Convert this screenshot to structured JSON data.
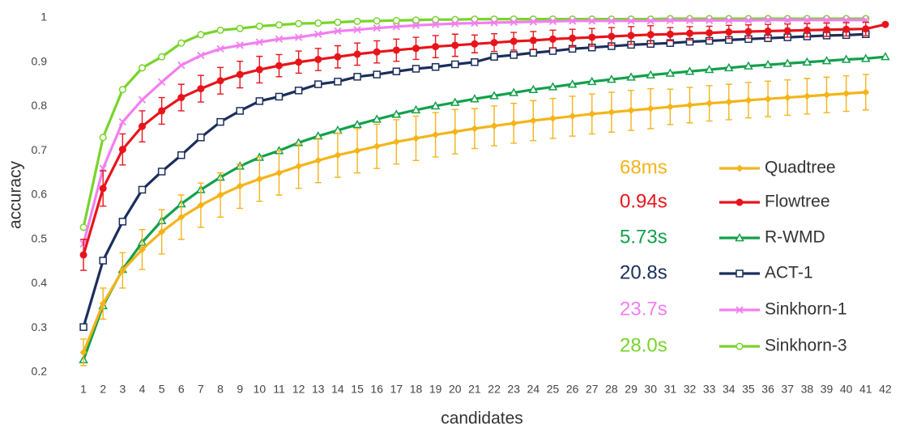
{
  "chart_data": {
    "type": "line",
    "xlabel": "candidates",
    "ylabel": "accuracy",
    "x": [
      1,
      2,
      3,
      4,
      5,
      6,
      7,
      8,
      9,
      10,
      11,
      12,
      13,
      14,
      15,
      16,
      17,
      18,
      19,
      20,
      21,
      22,
      23,
      24,
      25,
      26,
      27,
      28,
      29,
      30,
      31,
      32,
      33,
      34,
      35,
      36,
      37,
      38,
      39,
      40,
      41,
      42
    ],
    "xlim": [
      0.5,
      42.5
    ],
    "xticks": [
      1,
      2,
      3,
      4,
      5,
      6,
      7,
      8,
      9,
      10,
      11,
      12,
      13,
      14,
      15,
      16,
      17,
      18,
      19,
      20,
      21,
      22,
      23,
      24,
      25,
      26,
      27,
      28,
      29,
      30,
      31,
      32,
      33,
      34,
      35,
      36,
      37,
      38,
      39,
      40,
      41,
      42
    ],
    "ylim": [
      0.2,
      1
    ],
    "yticks": [
      0.2,
      0.3,
      0.4,
      0.5,
      0.6,
      0.7,
      0.8,
      0.9,
      1
    ],
    "grid": false,
    "legend": "right",
    "series": [
      {
        "name": "Quadtree",
        "time": "68ms",
        "color": "#f4b41a",
        "marker": "diamond",
        "values": [
          0.245,
          0.355,
          0.43,
          0.477,
          0.517,
          0.55,
          0.577,
          0.6,
          0.62,
          0.636,
          0.65,
          0.665,
          0.678,
          0.69,
          0.7,
          0.71,
          0.72,
          0.728,
          0.736,
          0.743,
          0.75,
          0.756,
          0.762,
          0.768,
          0.773,
          0.778,
          0.783,
          0.787,
          0.791,
          0.795,
          0.799,
          0.803,
          0.807,
          0.81,
          0.814,
          0.817,
          0.82,
          0.823,
          0.826,
          0.829,
          0.832,
          null
        ],
        "errors": [
          0.03,
          0.035,
          0.04,
          0.045,
          0.05,
          0.05,
          0.05,
          0.05,
          0.05,
          0.05,
          0.05,
          0.05,
          0.05,
          0.05,
          0.05,
          0.05,
          0.05,
          0.05,
          0.05,
          0.05,
          0.045,
          0.045,
          0.045,
          0.045,
          0.045,
          0.045,
          0.045,
          0.045,
          0.045,
          0.045,
          0.04,
          0.04,
          0.04,
          0.04,
          0.04,
          0.04,
          0.04,
          0.04,
          0.04,
          0.04,
          0.04,
          null
        ]
      },
      {
        "name": "Flowtree",
        "time": "0.94s",
        "color": "#e8141b",
        "marker": "circle",
        "values": [
          0.465,
          0.615,
          0.703,
          0.755,
          0.79,
          0.82,
          0.84,
          0.858,
          0.872,
          0.883,
          0.892,
          0.9,
          0.906,
          0.912,
          0.918,
          0.923,
          0.927,
          0.931,
          0.935,
          0.938,
          0.941,
          0.944,
          0.947,
          0.949,
          0.952,
          0.954,
          0.956,
          0.958,
          0.96,
          0.962,
          0.963,
          0.965,
          0.966,
          0.968,
          0.969,
          0.97,
          0.971,
          0.972,
          0.973,
          0.974,
          0.975,
          0.985
        ],
        "errors": [
          0.035,
          0.04,
          0.035,
          0.035,
          0.03,
          0.03,
          0.03,
          0.03,
          0.03,
          0.03,
          0.025,
          0.025,
          0.025,
          0.025,
          0.025,
          0.025,
          0.025,
          0.025,
          0.025,
          0.025,
          0.02,
          0.02,
          0.02,
          0.02,
          0.02,
          0.02,
          0.02,
          0.02,
          0.02,
          0.02,
          0.015,
          0.015,
          0.015,
          0.015,
          0.015,
          0.015,
          0.015,
          0.015,
          0.015,
          0.015,
          0.015,
          0
        ]
      },
      {
        "name": "R-WMD",
        "time": "5.73s",
        "color": "#12a04b",
        "marker": "triangle",
        "values": [
          0.228,
          0.35,
          0.432,
          0.493,
          0.542,
          0.58,
          0.612,
          0.64,
          0.665,
          0.685,
          0.7,
          0.718,
          0.733,
          0.746,
          0.759,
          0.771,
          0.782,
          0.792,
          0.801,
          0.809,
          0.817,
          0.824,
          0.831,
          0.838,
          0.844,
          0.85,
          0.856,
          0.861,
          0.866,
          0.871,
          0.875,
          0.879,
          0.883,
          0.887,
          0.891,
          0.894,
          0.897,
          0.9,
          0.903,
          0.906,
          0.908,
          0.912
        ]
      },
      {
        "name": "ACT-1",
        "time": "20.8s",
        "color": "#1b2e5c",
        "marker": "square",
        "values": [
          0.302,
          0.452,
          0.54,
          0.612,
          0.653,
          0.69,
          0.73,
          0.765,
          0.79,
          0.812,
          0.822,
          0.836,
          0.85,
          0.856,
          0.867,
          0.872,
          0.879,
          0.885,
          0.889,
          0.895,
          0.9,
          0.912,
          0.916,
          0.921,
          0.925,
          0.93,
          0.933,
          0.936,
          0.939,
          0.941,
          0.943,
          0.946,
          0.948,
          0.95,
          0.952,
          0.954,
          0.956,
          0.958,
          0.96,
          0.961,
          0.963,
          null
        ]
      },
      {
        "name": "Sinkhorn-1",
        "time": "23.7s",
        "color": "#f27ff0",
        "marker": "cross",
        "values": [
          0.49,
          0.66,
          0.765,
          0.815,
          0.855,
          0.893,
          0.915,
          0.93,
          0.938,
          0.945,
          0.952,
          0.956,
          0.963,
          0.97,
          0.973,
          0.977,
          0.98,
          0.983,
          0.985,
          0.987,
          0.988,
          0.989,
          0.99,
          0.991,
          0.992,
          0.993,
          0.993,
          0.993,
          0.993,
          0.993,
          0.994,
          0.994,
          0.994,
          0.994,
          0.994,
          0.995,
          0.995,
          0.995,
          0.995,
          0.995,
          0.995,
          null
        ]
      },
      {
        "name": "Sinkhorn-3",
        "time": "28.0s",
        "color": "#78d42a",
        "marker": "ocircle",
        "values": [
          0.527,
          0.73,
          0.838,
          0.887,
          0.912,
          0.943,
          0.962,
          0.972,
          0.976,
          0.981,
          0.984,
          0.987,
          0.988,
          0.99,
          0.992,
          0.993,
          0.994,
          0.995,
          0.996,
          0.996,
          0.997,
          0.997,
          0.997,
          0.997,
          0.997,
          0.997,
          0.997,
          0.997,
          0.997,
          0.997,
          0.998,
          0.998,
          0.998,
          0.998,
          0.998,
          0.998,
          0.998,
          0.998,
          0.998,
          0.998,
          0.998,
          null
        ]
      }
    ]
  }
}
